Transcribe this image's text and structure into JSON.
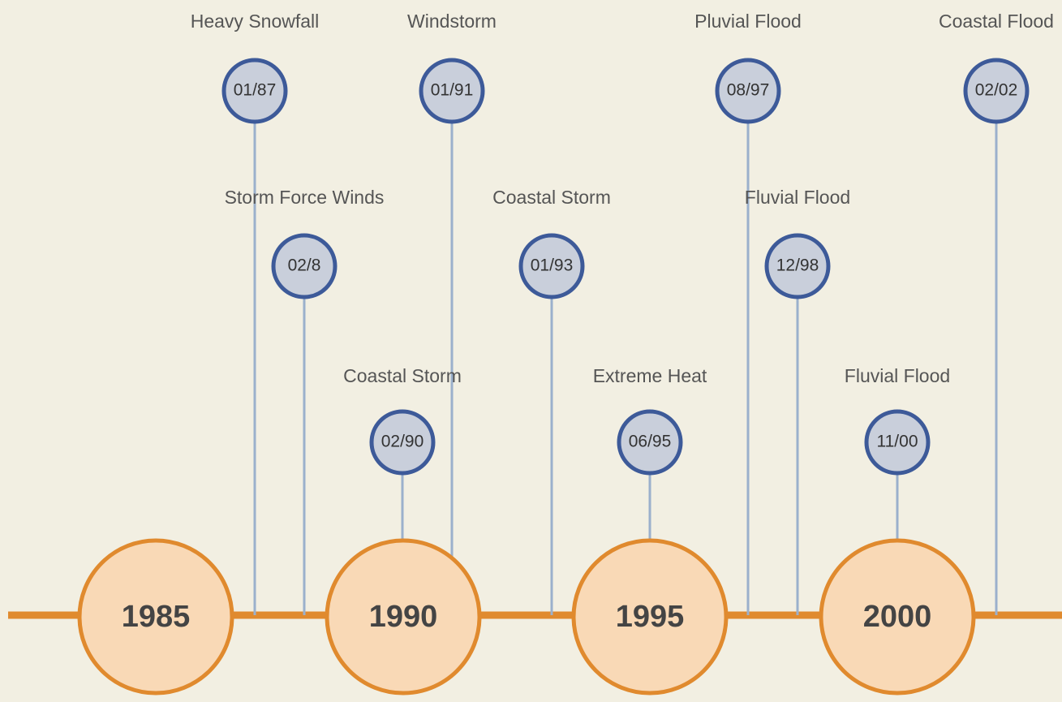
{
  "timeline": {
    "years": [
      "1985",
      "1990",
      "1995",
      "2000"
    ],
    "events": [
      {
        "label": "Heavy Snowfall",
        "date": "01/87"
      },
      {
        "label": "Storm Force Winds",
        "date": "02/8"
      },
      {
        "label": "Coastal Storm",
        "date": "02/90"
      },
      {
        "label": "Windstorm",
        "date": "01/91"
      },
      {
        "label": "Coastal Storm",
        "date": "01/93"
      },
      {
        "label": "Extreme Heat",
        "date": "06/95"
      },
      {
        "label": "Pluvial Flood",
        "date": "08/97"
      },
      {
        "label": "Fluvial Flood",
        "date": "12/98"
      },
      {
        "label": "Fluvial Flood",
        "date": "11/00"
      },
      {
        "label": "Coastal Flood",
        "date": "02/02"
      }
    ]
  }
}
